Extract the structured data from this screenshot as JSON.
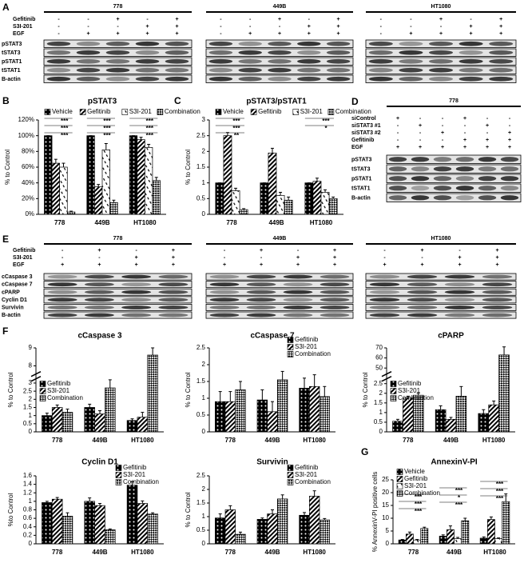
{
  "chart_data": [
    {
      "type": "bar",
      "panel": "B",
      "title": "pSTAT3",
      "ylabel": "% to Control",
      "categories": [
        "778",
        "449B",
        "HT1080"
      ],
      "series": [
        {
          "name": "Vehicle",
          "color": "#000000",
          "pattern": "dots",
          "values": [
            100,
            100,
            100
          ],
          "errors": [
            0,
            0,
            0
          ]
        },
        {
          "name": "Gefitinib",
          "color": "#000000",
          "pattern": "stripes",
          "values": [
            65,
            35,
            95
          ],
          "errors": [
            5,
            3,
            3
          ]
        },
        {
          "name": "S3I-201",
          "color": "#000000",
          "pattern": "hatch",
          "values": [
            60,
            82,
            85
          ],
          "errors": [
            5,
            8,
            4
          ]
        },
        {
          "name": "Combination",
          "color": "#000000",
          "pattern": "checker",
          "values": [
            3,
            15,
            43
          ],
          "errors": [
            1,
            3,
            4
          ]
        }
      ],
      "ylim": [
        0,
        120
      ],
      "yticks": [
        {
          "value": 0,
          "label": "0%"
        },
        {
          "value": 20,
          "label": "20%"
        },
        {
          "value": 40,
          "label": "40%"
        },
        {
          "value": 60,
          "label": "60%"
        },
        {
          "value": 80,
          "label": "80%"
        },
        {
          "value": 100,
          "label": "100%"
        },
        {
          "value": 120,
          "label": "120%"
        }
      ],
      "legend": "top",
      "annotations": [
        "***",
        "***",
        "***",
        "***",
        "***",
        "***",
        "***",
        "***",
        "***"
      ]
    },
    {
      "type": "bar",
      "panel": "C",
      "title": "pSTAT3/pSTAT1",
      "ylabel": "% to Control",
      "categories": [
        "778",
        "449B",
        "HT1080"
      ],
      "series": [
        {
          "name": "Vehicle",
          "color": "#000000",
          "pattern": "dots",
          "values": [
            1,
            1,
            1
          ],
          "errors": [
            0,
            0,
            0
          ]
        },
        {
          "name": "Gefitinib",
          "color": "#000000",
          "pattern": "stripes",
          "values": [
            2.5,
            1.95,
            1.05
          ],
          "errors": [
            0.1,
            0.15,
            0.1
          ]
        },
        {
          "name": "S3I-201",
          "color": "#000000",
          "pattern": "hatch",
          "values": [
            0.75,
            0.6,
            0.7
          ],
          "errors": [
            0.08,
            0.1,
            0.08
          ]
        },
        {
          "name": "Combination",
          "color": "#000000",
          "pattern": "checker",
          "values": [
            0.15,
            0.45,
            0.5
          ],
          "errors": [
            0.03,
            0.1,
            0.05
          ]
        }
      ],
      "ylim": [
        0,
        3
      ],
      "yticks": [
        0,
        0.5,
        1,
        1.5,
        2,
        2.5,
        3
      ],
      "legend": "top",
      "annotations": [
        "***",
        "***",
        "**",
        "***",
        "*"
      ]
    },
    {
      "type": "bar",
      "panel": "F",
      "title": "cCaspase 3",
      "ylabel": "% to Control",
      "categories": [
        "778",
        "449B",
        "HT1080"
      ],
      "series": [
        {
          "name": "Gefitinib",
          "color": "#000000",
          "pattern": "dots",
          "values": [
            1.0,
            1.5,
            0.7
          ],
          "errors": [
            0.15,
            0.2,
            0.1
          ]
        },
        {
          "name": "S3I-201",
          "color": "#000000",
          "pattern": "stripes",
          "values": [
            1.5,
            1.1,
            0.9
          ],
          "errors": [
            0.15,
            0.2,
            0.3
          ]
        },
        {
          "name": "Combination",
          "color": "#000000",
          "pattern": "checker",
          "values": [
            1.2,
            2.7,
            8.6
          ],
          "errors": [
            0.2,
            0.5,
            0.4
          ]
        }
      ],
      "ylim": [
        0,
        9
      ],
      "ybreak": [
        3.2,
        7.6
      ],
      "yticks": [
        0,
        0.5,
        1,
        1.5,
        2,
        2.5,
        3,
        8,
        9
      ],
      "legend": "upper-left"
    },
    {
      "type": "bar",
      "title": "cCaspase 7",
      "ylabel": "% to Control",
      "categories": [
        "778",
        "449B",
        "HT1080"
      ],
      "series": [
        {
          "name": "Gefitinib",
          "color": "#000000",
          "pattern": "dots",
          "values": [
            0.9,
            0.95,
            1.3
          ],
          "errors": [
            0.3,
            0.3,
            0.3
          ]
        },
        {
          "name": "S3I-201",
          "color": "#000000",
          "pattern": "stripes",
          "values": [
            0.9,
            0.6,
            1.35
          ],
          "errors": [
            0.3,
            0.3,
            0.35
          ]
        },
        {
          "name": "Combination",
          "color": "#000000",
          "pattern": "checker",
          "values": [
            1.25,
            1.55,
            1.05
          ],
          "errors": [
            0.25,
            0.25,
            0.3
          ]
        }
      ],
      "ylim": [
        0,
        2.5
      ],
      "yticks": [
        0,
        0.5,
        1,
        1.5,
        2,
        2.5
      ],
      "legend": "upper-right"
    },
    {
      "type": "bar",
      "title": "cPARP",
      "ylabel": "% to Control",
      "categories": [
        "778",
        "449B",
        "HT1080"
      ],
      "series": [
        {
          "name": "Gefitinib",
          "color": "#000000",
          "pattern": "dots",
          "values": [
            0.55,
            1.15,
            0.95
          ],
          "errors": [
            0.1,
            0.2,
            0.2
          ]
        },
        {
          "name": "S3I-201",
          "color": "#000000",
          "pattern": "stripes",
          "values": [
            1.75,
            0.65,
            1.4
          ],
          "errors": [
            0.1,
            0.1,
            0.2
          ]
        },
        {
          "name": "Combination",
          "color": "#000000",
          "pattern": "checker",
          "values": [
            1.9,
            1.85,
            63
          ],
          "errors": [
            0.1,
            0.5,
            8
          ]
        }
      ],
      "ylim": [
        0,
        70
      ],
      "ybreak": [
        2.7,
        45
      ],
      "yticks": [
        0,
        0.5,
        1,
        1.5,
        2,
        2.5,
        50,
        60,
        70
      ],
      "legend": "upper-left"
    },
    {
      "type": "bar",
      "title": "Cyclin D1",
      "ylabel": "%to Control",
      "categories": [
        "778",
        "449B",
        "HT1080"
      ],
      "series": [
        {
          "name": "Gefitinib",
          "color": "#000000",
          "pattern": "dots",
          "values": [
            0.97,
            1.0,
            1.38
          ],
          "errors": [
            0.03,
            0.08,
            0.08
          ]
        },
        {
          "name": "S3I-201",
          "color": "#000000",
          "pattern": "stripes",
          "values": [
            1.05,
            0.9,
            0.95
          ],
          "errors": [
            0.04,
            0.05,
            0.06
          ]
        },
        {
          "name": "Combination",
          "color": "#000000",
          "pattern": "checker",
          "values": [
            0.65,
            0.33,
            0.7
          ],
          "errors": [
            0.08,
            0.02,
            0.03
          ]
        }
      ],
      "ylim": [
        0,
        1.6
      ],
      "yticks": [
        0,
        0.2,
        0.4,
        0.6,
        0.8,
        1,
        1.2,
        1.4,
        1.6
      ],
      "legend": "upper-right"
    },
    {
      "type": "bar",
      "title": "Survivin",
      "ylabel": "% to Control",
      "categories": [
        "778",
        "449B",
        "HT1080"
      ],
      "series": [
        {
          "name": "Gefitinib",
          "color": "#000000",
          "pattern": "dots",
          "values": [
            0.95,
            0.9,
            1.05
          ],
          "errors": [
            0.15,
            0.05,
            0.1
          ]
        },
        {
          "name": "S3I-201",
          "color": "#000000",
          "pattern": "stripes",
          "values": [
            1.25,
            1.1,
            1.75
          ],
          "errors": [
            0.15,
            0.15,
            0.2
          ]
        },
        {
          "name": "Combination",
          "color": "#000000",
          "pattern": "checker",
          "values": [
            0.35,
            1.65,
            0.88
          ],
          "errors": [
            0.08,
            0.15,
            0.05
          ]
        }
      ],
      "ylim": [
        0,
        2.5
      ],
      "yticks": [
        0,
        0.5,
        1,
        1.5,
        2,
        2.5
      ],
      "legend": "upper-right"
    },
    {
      "type": "bar",
      "panel": "G",
      "title": "AnnexinV-PI",
      "ylabel": "% AnnexinV-PI positive cells",
      "categories": [
        "778",
        "449B",
        "HT1080"
      ],
      "series": [
        {
          "name": "Vehicle",
          "color": "#000000",
          "pattern": "dots",
          "values": [
            1.5,
            3,
            2.2
          ],
          "errors": [
            0.2,
            0.5,
            0.5
          ]
        },
        {
          "name": "Gefitinib",
          "color": "#000000",
          "pattern": "stripes",
          "values": [
            3.8,
            5.5,
            9.5
          ],
          "errors": [
            0.8,
            1.5,
            1
          ]
        },
        {
          "name": "S3I-201",
          "color": "#000000",
          "pattern": "hatch",
          "values": [
            1.5,
            2,
            2
          ],
          "errors": [
            0.2,
            0.5,
            0.3
          ]
        },
        {
          "name": "Combination",
          "color": "#000000",
          "pattern": "checker",
          "values": [
            6,
            9,
            16.5
          ],
          "errors": [
            0.5,
            1,
            3
          ]
        }
      ],
      "ylim": [
        0,
        25
      ],
      "yticks": [
        0,
        5,
        10,
        15,
        20,
        25
      ],
      "legend": "upper-left",
      "annotations": [
        "***",
        "***",
        "***",
        "***",
        "*",
        "***",
        "***",
        "***",
        "***"
      ]
    }
  ],
  "blots": [
    {
      "panel": "A",
      "groups": [
        "778",
        "449B",
        "HT1080"
      ],
      "treatments": [
        {
          "name": "Gefitinib",
          "signs": [
            "-",
            "-",
            "+",
            "-",
            "+"
          ]
        },
        {
          "name": "S3I-201",
          "signs": [
            "-",
            "-",
            "-",
            "+",
            "+"
          ]
        },
        {
          "name": "EGF",
          "signs": [
            "-",
            "+",
            "+",
            "+",
            "+"
          ]
        }
      ],
      "proteins": [
        "pSTAT3",
        "tSTAT3",
        "pSTAT1",
        "tSTAT1",
        "B-actin"
      ]
    },
    {
      "panel": "D",
      "groups": [
        "778"
      ],
      "treatments": [
        {
          "name": "siControl",
          "signs": [
            "+",
            "-",
            "-",
            "+",
            "-",
            "-"
          ]
        },
        {
          "name": "siSTAT3 #1",
          "signs": [
            "-",
            "+",
            "-",
            "-",
            "+",
            "-"
          ]
        },
        {
          "name": "siSTAT3 #2",
          "signs": [
            "-",
            "-",
            "+",
            "-",
            "-",
            "+"
          ]
        },
        {
          "name": "Gefitinib",
          "signs": [
            "-",
            "-",
            "-",
            "+",
            "+",
            "+"
          ]
        },
        {
          "name": "EGF",
          "signs": [
            "+",
            "+",
            "+",
            "+",
            "+",
            "+"
          ]
        }
      ],
      "proteins": [
        "pSTAT3",
        "tSTAT3",
        "pSTAT1",
        "tSTAT1",
        "B-actin"
      ]
    },
    {
      "panel": "E",
      "groups": [
        "778",
        "449B",
        "HT1080"
      ],
      "treatments": [
        {
          "name": "Gefitinib",
          "signs": [
            "-",
            "+",
            "-",
            "+"
          ]
        },
        {
          "name": "S3I-201",
          "signs": [
            "-",
            "-",
            "+",
            "+"
          ]
        },
        {
          "name": "EGF",
          "signs": [
            "+",
            "+",
            "+",
            "+"
          ]
        }
      ],
      "proteins": [
        "cCaspase 3",
        "cCaspase 7",
        "cPARP",
        "Cyclin D1",
        "Survivin",
        "B-actin"
      ]
    }
  ]
}
